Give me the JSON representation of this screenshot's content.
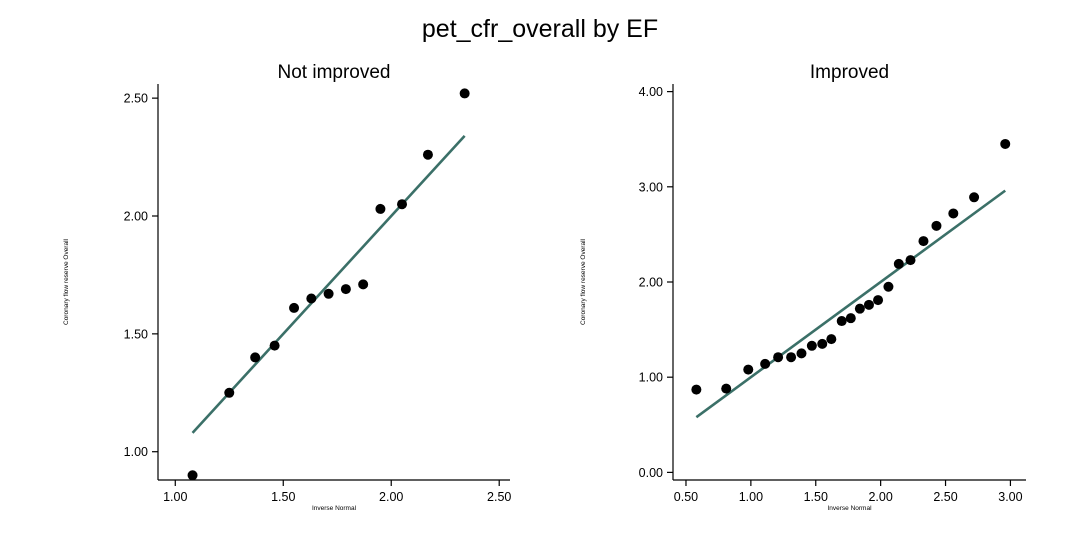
{
  "title": "pet_cfr_overall by EF",
  "colors": {
    "fit_line": "#3b7068",
    "points": "#000000"
  },
  "chart_data": [
    {
      "type": "scatter",
      "title": "Not improved",
      "xlabel": "Inverse Normal",
      "ylabel": "Coronary flow reserve Overall",
      "xlim": [
        0.92,
        2.55
      ],
      "ylim": [
        0.88,
        2.56
      ],
      "xticks": [
        1.0,
        1.5,
        2.0,
        2.5
      ],
      "xtick_labels": [
        "1.00",
        "1.50",
        "2.00",
        "2.50"
      ],
      "yticks": [
        1.0,
        1.5,
        2.0,
        2.5
      ],
      "ytick_labels": [
        "1.00",
        "1.50",
        "2.00",
        "2.50"
      ],
      "points": [
        {
          "x": 1.08,
          "y": 0.9
        },
        {
          "x": 1.25,
          "y": 1.25
        },
        {
          "x": 1.37,
          "y": 1.4
        },
        {
          "x": 1.46,
          "y": 1.45
        },
        {
          "x": 1.55,
          "y": 1.61
        },
        {
          "x": 1.63,
          "y": 1.65
        },
        {
          "x": 1.71,
          "y": 1.67
        },
        {
          "x": 1.79,
          "y": 1.69
        },
        {
          "x": 1.87,
          "y": 1.71
        },
        {
          "x": 1.95,
          "y": 2.03
        },
        {
          "x": 2.05,
          "y": 2.05
        },
        {
          "x": 2.17,
          "y": 2.26
        },
        {
          "x": 2.34,
          "y": 2.52
        }
      ],
      "fit_line": {
        "x": [
          1.08,
          2.34
        ],
        "y": [
          1.08,
          2.34
        ]
      }
    },
    {
      "type": "scatter",
      "title": "Improved",
      "xlabel": "Inverse Normal",
      "ylabel": "Coronary flow reserve Overall",
      "xlim": [
        0.4,
        3.12
      ],
      "ylim": [
        -0.08,
        4.08
      ],
      "xticks": [
        0.5,
        1.0,
        1.5,
        2.0,
        2.5,
        3.0
      ],
      "xtick_labels": [
        "0.50",
        "1.00",
        "1.50",
        "2.00",
        "2.50",
        "3.00"
      ],
      "yticks": [
        0.0,
        1.0,
        2.0,
        3.0,
        4.0
      ],
      "ytick_labels": [
        "0.00",
        "1.00",
        "2.00",
        "3.00",
        "4.00"
      ],
      "points": [
        {
          "x": 0.58,
          "y": 0.87
        },
        {
          "x": 0.81,
          "y": 0.88
        },
        {
          "x": 0.98,
          "y": 1.08
        },
        {
          "x": 1.11,
          "y": 1.14
        },
        {
          "x": 1.21,
          "y": 1.21
        },
        {
          "x": 1.31,
          "y": 1.21
        },
        {
          "x": 1.39,
          "y": 1.25
        },
        {
          "x": 1.47,
          "y": 1.33
        },
        {
          "x": 1.55,
          "y": 1.35
        },
        {
          "x": 1.62,
          "y": 1.4
        },
        {
          "x": 1.7,
          "y": 1.59
        },
        {
          "x": 1.77,
          "y": 1.62
        },
        {
          "x": 1.84,
          "y": 1.72
        },
        {
          "x": 1.91,
          "y": 1.76
        },
        {
          "x": 1.98,
          "y": 1.81
        },
        {
          "x": 2.06,
          "y": 1.95
        },
        {
          "x": 2.14,
          "y": 2.19
        },
        {
          "x": 2.23,
          "y": 2.23
        },
        {
          "x": 2.33,
          "y": 2.43
        },
        {
          "x": 2.43,
          "y": 2.59
        },
        {
          "x": 2.56,
          "y": 2.72
        },
        {
          "x": 2.72,
          "y": 2.89
        },
        {
          "x": 2.96,
          "y": 3.45
        }
      ],
      "fit_line": {
        "x": [
          0.58,
          2.96
        ],
        "y": [
          0.58,
          2.96
        ]
      }
    }
  ]
}
